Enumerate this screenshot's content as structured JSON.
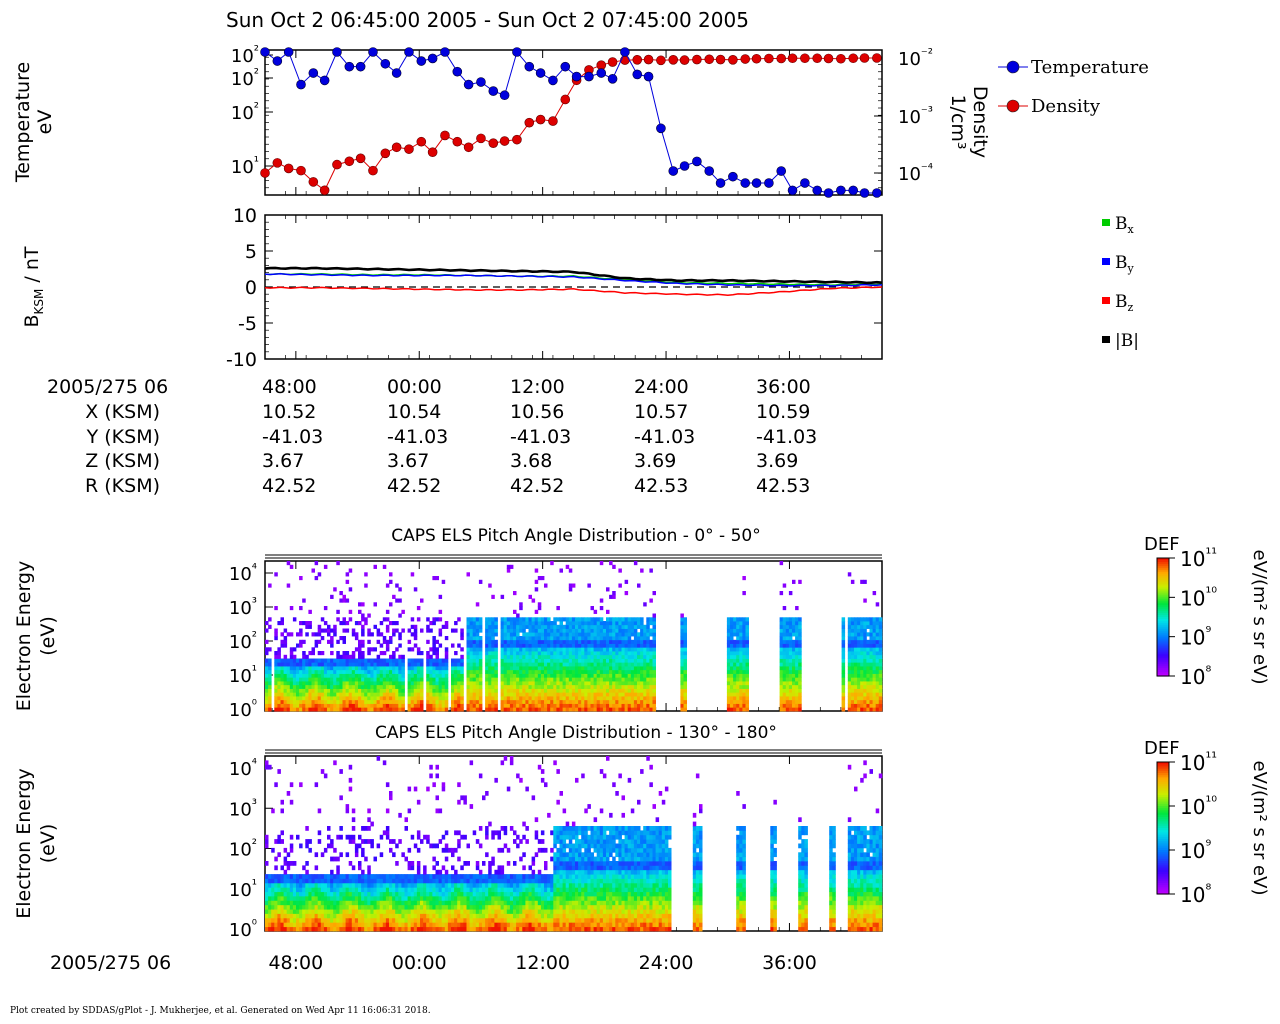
{
  "title": "Sun Oct 2 06:45:00 2005 - Sun Oct 2 07:45:00 2005",
  "credit": "Plot created by SDDAS/gPlot - J. Mukherjee, et al.  Generated on Wed Apr 11 16:06:31 2018.",
  "colors": {
    "temperature": "#0000dd",
    "density": "#dd0000",
    "bx": "#00cc00",
    "by": "#0000ff",
    "bz": "#ff0000",
    "bmag": "#000000"
  },
  "chart_data": [
    {
      "type": "scatter",
      "id": "temperature-density",
      "ylabel": [
        "Temperature",
        "eV"
      ],
      "y2label": [
        "Density",
        "1/cm³"
      ],
      "ylog": true,
      "y_tick_labels": [
        "10²",
        "10²",
        "10²",
        "10¹"
      ],
      "y2_tick_labels": [
        "10⁻²",
        "10⁻³",
        "10⁻⁴"
      ],
      "legend": [
        {
          "name": "Temperature",
          "color": "#0000dd"
        },
        {
          "name": "Density",
          "color": "#dd0000"
        }
      ],
      "legend_position": "right",
      "x_minutes": [
        45.0,
        46.2,
        47.3,
        48.5,
        49.7,
        50.8,
        52.0,
        53.2,
        54.3,
        55.5,
        56.7,
        57.8,
        59.0,
        60.2,
        61.3,
        62.5,
        63.7,
        64.8,
        66.0,
        67.2,
        68.3,
        69.5,
        70.7,
        71.8,
        73.0,
        74.2,
        75.3,
        76.5,
        77.7,
        78.8,
        80.0,
        81.2,
        82.3,
        83.5,
        84.7,
        85.8,
        87.0,
        88.2,
        89.3,
        90.5,
        91.7,
        92.8,
        94.0,
        95.2,
        96.3,
        97.5,
        98.7,
        99.8,
        101.0,
        102.2,
        103.3,
        104.5
      ],
      "temperature": [
        150,
        90,
        110,
        55,
        70,
        60,
        130,
        80,
        80,
        120,
        85,
        70,
        115,
        90,
        95,
        140,
        72,
        55,
        58,
        48,
        44,
        160,
        80,
        70,
        60,
        80,
        65,
        65,
        70,
        62,
        150,
        68,
        65,
        22,
        9,
        10,
        11,
        9,
        7,
        8,
        7,
        7,
        7,
        9,
        6,
        7,
        6,
        5,
        6,
        6,
        5,
        5
      ],
      "density": [
        0.0001,
        0.00015,
        0.00012,
        0.00011,
        7e-05,
        5e-05,
        0.00014,
        0.00016,
        0.00018,
        0.00011,
        0.00022,
        0.00028,
        0.00026,
        0.00035,
        0.00023,
        0.00045,
        0.00035,
        0.00028,
        0.0004,
        0.00033,
        0.00036,
        0.00038,
        0.00075,
        0.00085,
        0.0008,
        0.0019,
        0.0041,
        0.0062,
        0.0075,
        0.0085,
        0.0092,
        0.0093,
        0.0094,
        0.0091,
        0.0093,
        0.0092,
        0.0094,
        0.0095,
        0.0094,
        0.0093,
        0.0096,
        0.0097,
        0.0098,
        0.0098,
        0.0099,
        0.0099,
        0.0099,
        0.0098,
        0.0097,
        0.0099,
        0.01,
        0.01
      ]
    },
    {
      "type": "line",
      "id": "magnetic-field",
      "ylabel": "B",
      "ylabel_sub": "KSM",
      "ylabel_unit": " / nT",
      "ylim": [
        -10,
        10
      ],
      "y_ticks": [
        10,
        5,
        0,
        -5,
        -10
      ],
      "y_tick_labels": [
        "10",
        "5",
        "0",
        "-5",
        "-10"
      ],
      "legend": [
        {
          "base": "B",
          "sub": "x",
          "color": "#00cc00"
        },
        {
          "base": "B",
          "sub": "y",
          "color": "#0000ff"
        },
        {
          "base": "B",
          "sub": "z",
          "color": "#ff0000"
        },
        {
          "base": "|B|",
          "sub": "",
          "color": "#000000"
        }
      ],
      "legend_position": "right",
      "x_minutes": [
        45,
        50,
        55,
        60,
        65,
        70,
        75,
        80,
        85,
        90,
        95,
        100,
        105
      ],
      "bx": [
        1.8,
        1.8,
        1.7,
        1.7,
        1.6,
        1.5,
        1.5,
        1.0,
        0.6,
        0.5,
        0.4,
        0.3,
        0.4
      ],
      "by": [
        1.8,
        1.7,
        1.6,
        1.6,
        1.6,
        1.5,
        1.4,
        0.9,
        0.5,
        0.3,
        0.2,
        0.2,
        0.3
      ],
      "bz": [
        -0.1,
        -0.1,
        -0.2,
        -0.3,
        -0.4,
        -0.4,
        -0.3,
        -0.8,
        -1.0,
        -1.1,
        -0.7,
        -0.2,
        0.0
      ],
      "bmag": [
        2.6,
        2.6,
        2.5,
        2.4,
        2.3,
        2.2,
        2.1,
        1.2,
        0.9,
        0.9,
        0.8,
        0.7,
        0.6
      ]
    },
    {
      "type": "heatmap",
      "id": "pad-0-50",
      "title": "CAPS ELS Pitch Angle Distribution - 0° - 50°",
      "ylabel": [
        "Electron Energy",
        "(eV)"
      ],
      "ylog": true,
      "y_tick_labels": [
        "10⁴",
        "10³",
        "10²",
        "10¹",
        "10⁰"
      ],
      "colorbar": {
        "title": "DEF",
        "unit": "eV/(m² s sr eV)",
        "tick_labels": [
          "10¹¹",
          "10¹⁰",
          "10⁹",
          "10⁸"
        ]
      },
      "gaps_minutes": [
        [
          45.6,
          45.9
        ],
        [
          58.4,
          58.6
        ],
        [
          60.3,
          60.5
        ],
        [
          62.6,
          63.0
        ],
        [
          64.1,
          64.4
        ],
        [
          65.9,
          66.2
        ],
        [
          67.5,
          67.8
        ],
        [
          82.8,
          85.3
        ],
        [
          85.9,
          89.9
        ],
        [
          91.8,
          94.8
        ],
        [
          96.9,
          100.8
        ],
        [
          101.3,
          101.6
        ]
      ]
    },
    {
      "type": "heatmap",
      "id": "pad-130-180",
      "title": "CAPS ELS Pitch Angle Distribution - 130° - 180°",
      "ylabel": [
        "Electron Energy",
        "(eV)"
      ],
      "ylog": true,
      "y_tick_labels": [
        "10⁴",
        "10³",
        "10²",
        "10¹",
        "10⁰"
      ],
      "colorbar": {
        "title": "DEF",
        "unit": "eV/(m² s sr eV)",
        "tick_labels": [
          "10¹¹",
          "10¹⁰",
          "10⁹",
          "10⁸"
        ]
      },
      "gaps_minutes": [
        [
          84.2,
          86.3
        ],
        [
          87.3,
          90.8
        ],
        [
          91.7,
          93.9
        ],
        [
          94.6,
          96.6
        ],
        [
          97.5,
          99.7
        ],
        [
          100.4,
          101.6
        ]
      ]
    }
  ],
  "x_axis": {
    "label": "2005/275 06",
    "tick_labels": [
      "48:00",
      "00:00",
      "12:00",
      "24:00",
      "36:00"
    ]
  },
  "ephemeris": {
    "header": "2005/275 06",
    "rows": [
      {
        "label": "X (KSM)",
        "values": [
          "10.52",
          "10.54",
          "10.56",
          "10.57",
          "10.59"
        ]
      },
      {
        "label": "Y (KSM)",
        "values": [
          "-41.03",
          "-41.03",
          "-41.03",
          "-41.03",
          "-41.03"
        ]
      },
      {
        "label": "Z (KSM)",
        "values": [
          "3.67",
          "3.67",
          "3.68",
          "3.69",
          "3.69"
        ]
      },
      {
        "label": "R (KSM)",
        "values": [
          "42.52",
          "42.52",
          "42.52",
          "42.53",
          "42.53"
        ]
      }
    ]
  }
}
